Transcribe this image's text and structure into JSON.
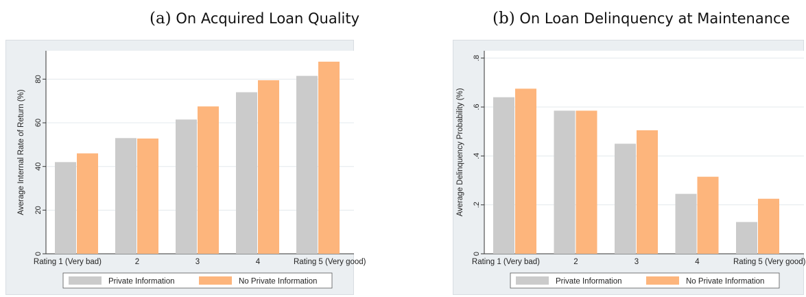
{
  "captions": [
    {
      "label": "(a)",
      "text": "On Acquired Loan Quality"
    },
    {
      "label": "(b)",
      "text": "On Loan Delinquency at Maintenance"
    }
  ],
  "colors": {
    "private": "#cbcbcb",
    "no_private": "#fdb57c",
    "panel_bg": "#ebeff2",
    "plot_bg": "#ffffff",
    "grid": "#e3e8ec"
  },
  "chart_data": [
    {
      "type": "bar",
      "categories": [
        "Rating 1 (Very bad)",
        "2",
        "3",
        "4",
        "Rating 5 (Very good)"
      ],
      "series": [
        {
          "name": "Private Information",
          "values": [
            42,
            53,
            61.5,
            74,
            81.5
          ]
        },
        {
          "name": "No Private Information",
          "values": [
            46,
            52.8,
            67.5,
            79.5,
            88
          ]
        }
      ],
      "ylabel": "Average Internal Rate of Return (%)",
      "yticks": [
        0,
        20,
        40,
        60,
        80
      ],
      "ytick_labels": [
        "0",
        "20",
        "40",
        "60",
        "80"
      ],
      "ylim": [
        0,
        93
      ],
      "grid": true,
      "legend_position": "bottom"
    },
    {
      "type": "bar",
      "categories": [
        "Rating 1 (Very bad)",
        "2",
        "3",
        "4",
        "Rating 5 (Very good)"
      ],
      "series": [
        {
          "name": "Private Information",
          "values": [
            0.64,
            0.585,
            0.45,
            0.245,
            0.13
          ]
        },
        {
          "name": "No Private Information",
          "values": [
            0.675,
            0.585,
            0.505,
            0.315,
            0.225
          ]
        }
      ],
      "ylabel": "Average Delinquency Probability (%)",
      "yticks": [
        0,
        0.2,
        0.4,
        0.6,
        0.8
      ],
      "ytick_labels": [
        "0",
        ".2",
        ".4",
        ".6",
        ".8"
      ],
      "ylim": [
        0,
        0.83
      ],
      "grid": true,
      "legend_position": "bottom"
    }
  ]
}
